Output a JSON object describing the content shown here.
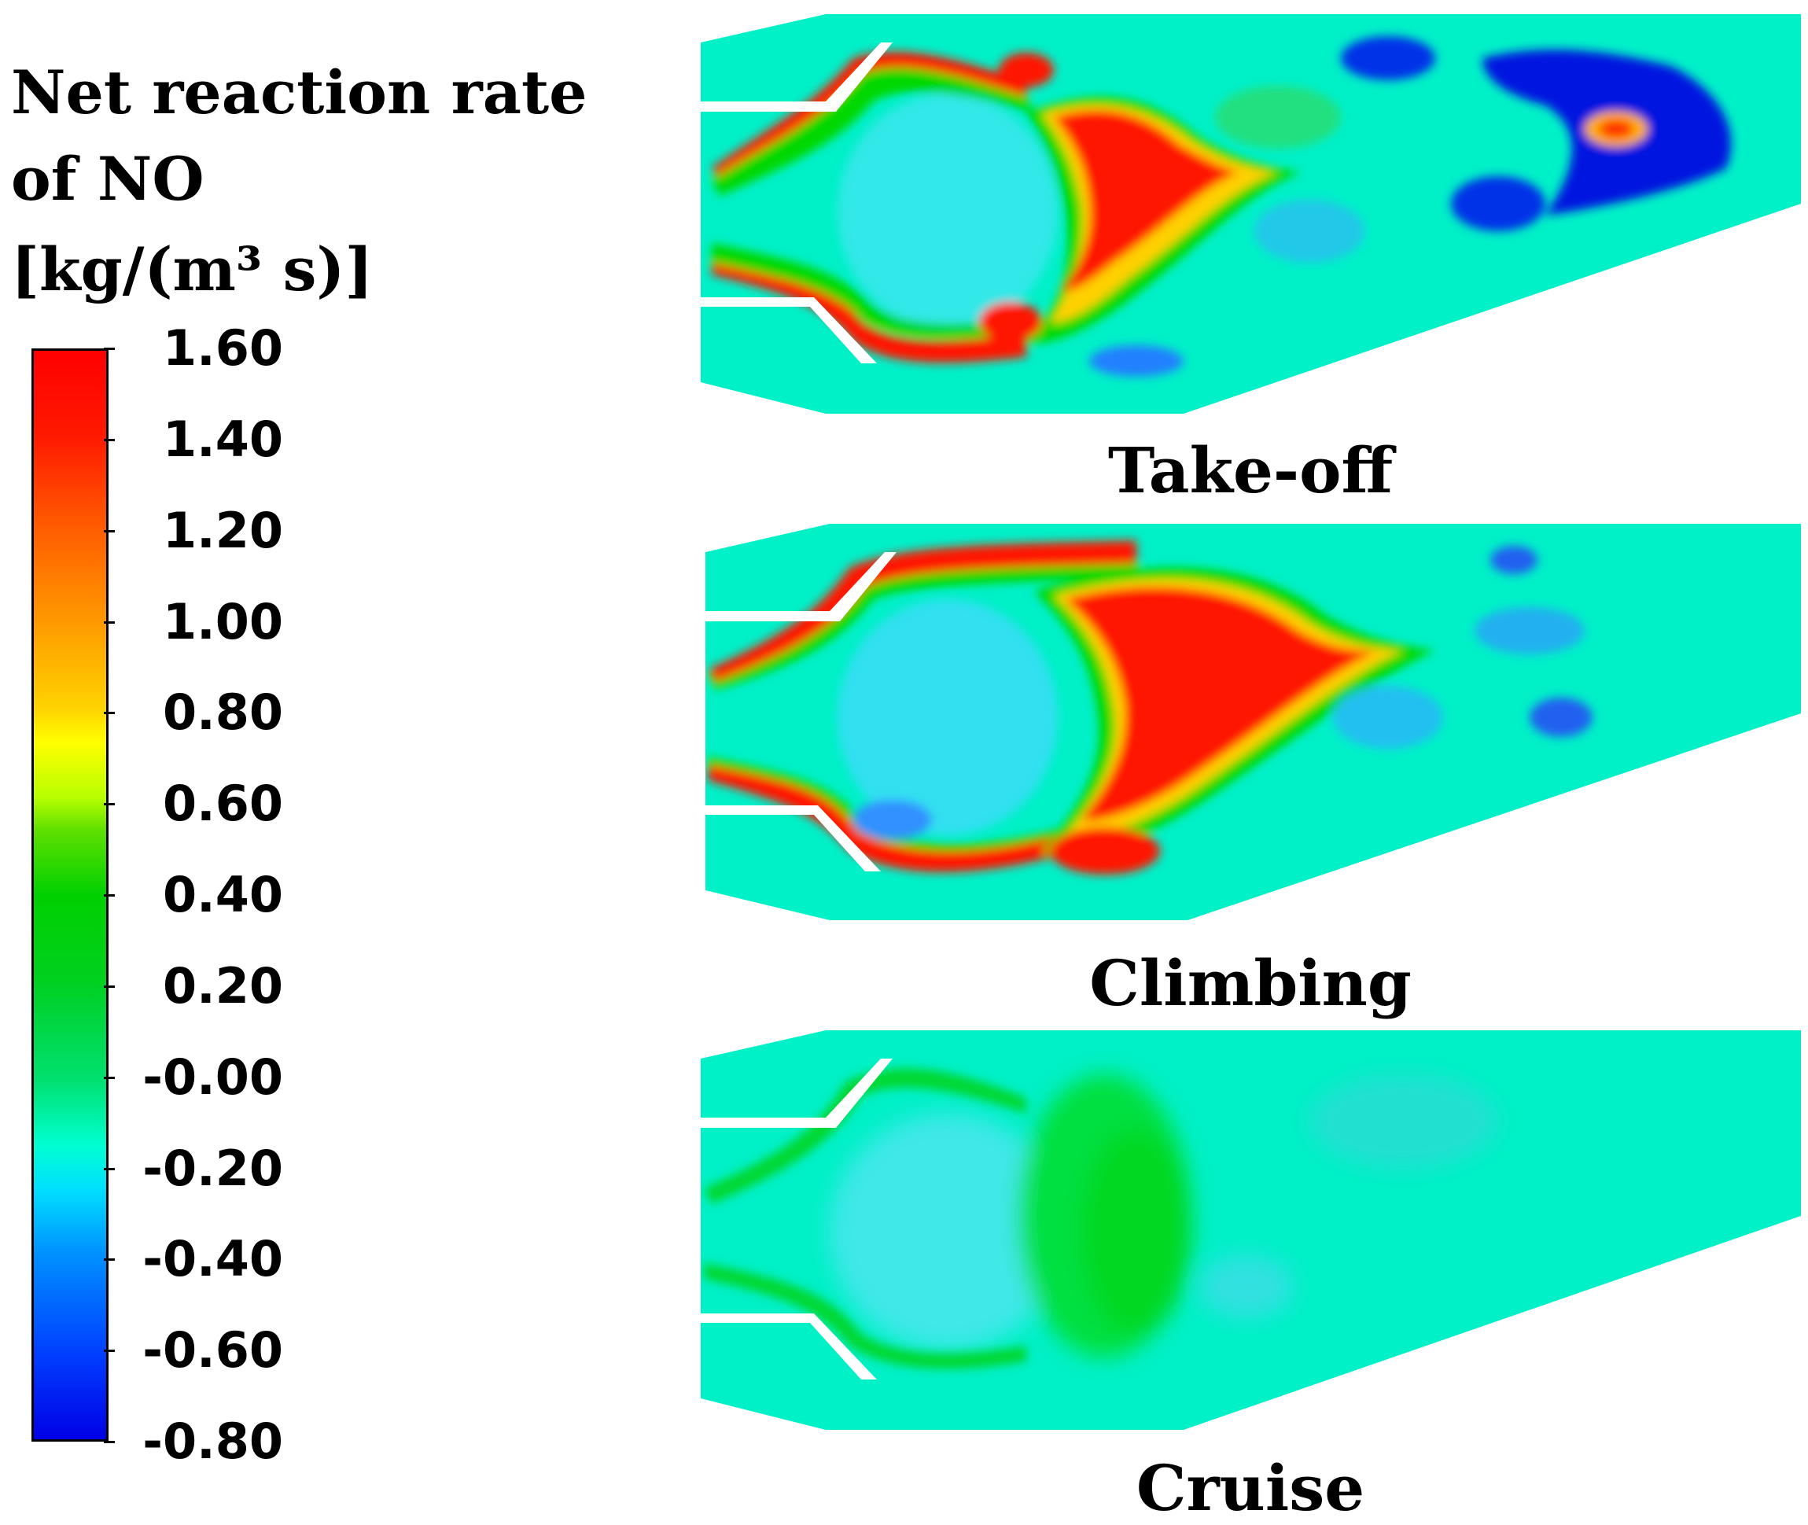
{
  "chart_data": {
    "type": "heatmap",
    "title_lines": [
      "Net reaction rate",
      "of NO",
      "[kg/(m³ s)]"
    ],
    "colorbar": {
      "min": -0.8,
      "max": 1.6,
      "tick_labels": [
        "1.60",
        "1.40",
        "1.20",
        "1.00",
        "0.80",
        "0.60",
        "0.40",
        "0.20",
        "-0.00",
        "-0.20",
        "-0.40",
        "-0.60",
        "-0.80"
      ],
      "colormap": "rainbow (blue - cyan - green - yellow - red)"
    },
    "panels": [
      {
        "label": "Take-off",
        "peak_value": 1.6,
        "low_value": -0.8
      },
      {
        "label": "Climbing",
        "peak_value": 1.6,
        "low_value": -0.4
      },
      {
        "label": "Cruise",
        "peak_value": 0.5,
        "low_value": -0.2
      }
    ]
  },
  "colors": {
    "background_field": "#00f0c8",
    "red": "#ff0000",
    "green": "#00d800",
    "blue": "#0014e0"
  }
}
